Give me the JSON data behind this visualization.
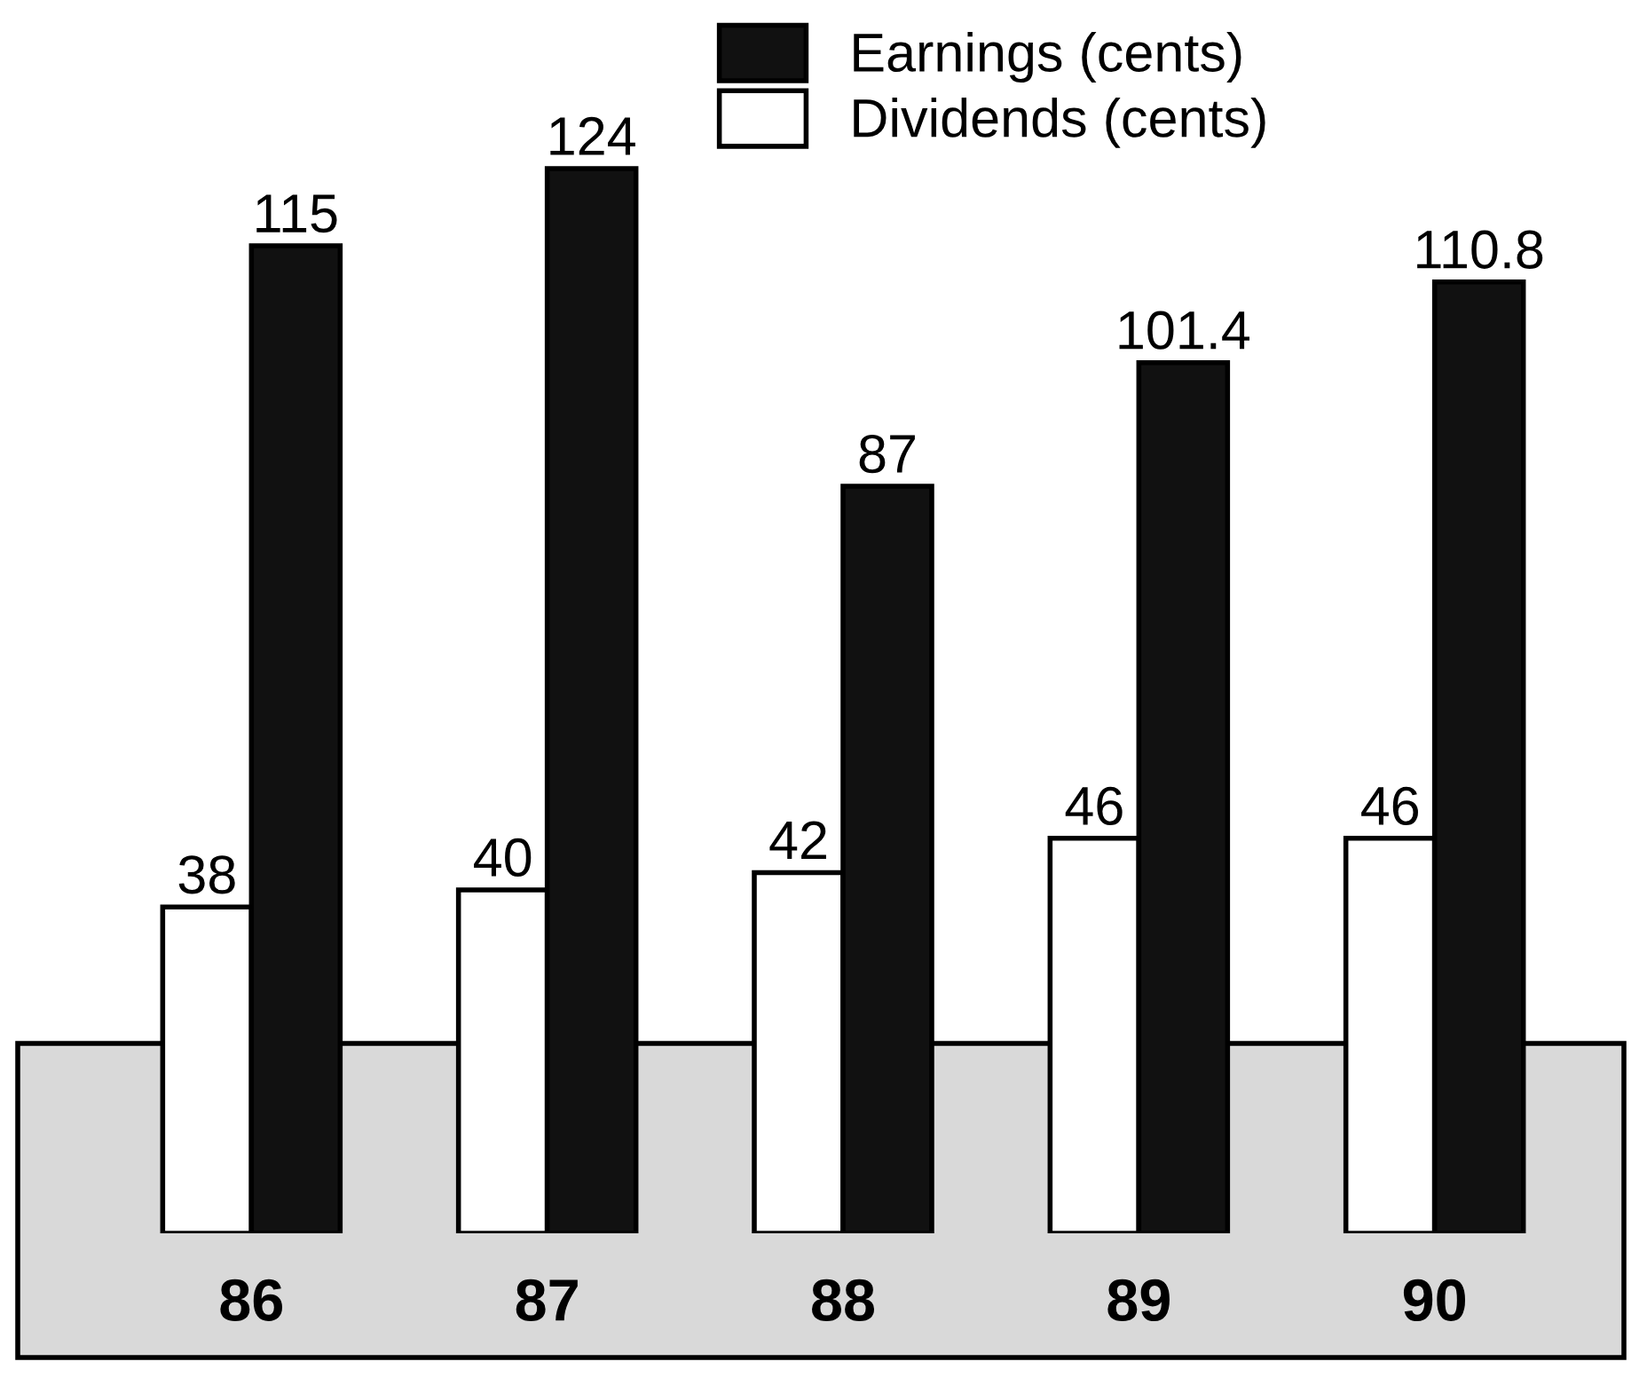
{
  "chart_data": {
    "type": "bar",
    "categories": [
      "86",
      "87",
      "88",
      "89",
      "90"
    ],
    "series": [
      {
        "name": "Dividends (cents)",
        "color": "#ffffff",
        "values": [
          38,
          40,
          42,
          46,
          46
        ]
      },
      {
        "name": "Earnings (cents)",
        "color": "#111111",
        "values": [
          115,
          124,
          87,
          101.4,
          110.8
        ]
      }
    ],
    "tick_labels": "x",
    "data_labels": true,
    "legend": "top",
    "grid": false
  }
}
